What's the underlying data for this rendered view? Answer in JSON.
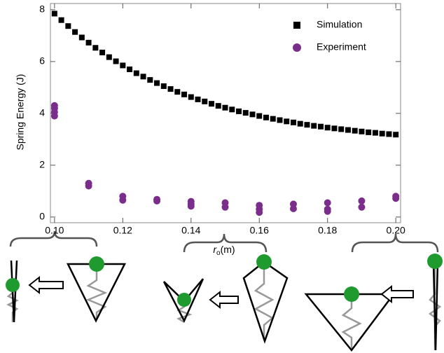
{
  "chart_data": {
    "type": "scatter",
    "ylabel": "Spring Energy (J)",
    "xlabel": {
      "symbol": "r",
      "subscript": "o",
      "unit": "(m)"
    },
    "xlim": [
      0.0988,
      0.2014
    ],
    "ylim": [
      -0.22,
      8.24
    ],
    "xticks": [
      {
        "value": 0.1,
        "label": "0.10"
      },
      0.12,
      0.14,
      0.16,
      0.18,
      {
        "value": 0.2,
        "label": "0.20"
      }
    ],
    "yticks": [
      0,
      2,
      4,
      6,
      8
    ],
    "legend": "upper right",
    "series": [
      {
        "name": "Simulation",
        "color": "#000000",
        "marker": "square",
        "x": [
          0.1,
          0.102,
          0.104,
          0.106,
          0.108,
          0.11,
          0.112,
          0.114,
          0.116,
          0.118,
          0.12,
          0.122,
          0.124,
          0.126,
          0.128,
          0.13,
          0.132,
          0.134,
          0.136,
          0.138,
          0.14,
          0.142,
          0.144,
          0.146,
          0.148,
          0.15,
          0.152,
          0.154,
          0.156,
          0.158,
          0.16,
          0.162,
          0.164,
          0.166,
          0.168,
          0.17,
          0.172,
          0.174,
          0.176,
          0.178,
          0.18,
          0.182,
          0.184,
          0.186,
          0.188,
          0.19,
          0.192,
          0.194,
          0.196,
          0.198,
          0.2
        ],
        "values": [
          7.85,
          7.6,
          7.37,
          7.14,
          6.93,
          6.73,
          6.53,
          6.35,
          6.17,
          6.01,
          5.85,
          5.7,
          5.55,
          5.42,
          5.29,
          5.17,
          5.05,
          4.94,
          4.83,
          4.73,
          4.63,
          4.54,
          4.46,
          4.37,
          4.29,
          4.22,
          4.15,
          4.08,
          4.02,
          3.96,
          3.9,
          3.84,
          3.79,
          3.74,
          3.69,
          3.65,
          3.6,
          3.56,
          3.52,
          3.49,
          3.45,
          3.42,
          3.39,
          3.36,
          3.33,
          3.3,
          3.27,
          3.25,
          3.22,
          3.2,
          3.18
        ]
      },
      {
        "name": "Experiment",
        "color": "#7b2d8b",
        "marker": "circle",
        "x": [
          0.1,
          0.1,
          0.1,
          0.1,
          0.11,
          0.11,
          0.12,
          0.12,
          0.13,
          0.13,
          0.14,
          0.14,
          0.14,
          0.15,
          0.15,
          0.16,
          0.16,
          0.16,
          0.17,
          0.17,
          0.18,
          0.18,
          0.18,
          0.19,
          0.19,
          0.2,
          0.2
        ],
        "values": [
          4.3,
          4.2,
          4.05,
          3.9,
          1.3,
          1.2,
          0.8,
          0.65,
          0.68,
          0.62,
          0.6,
          0.5,
          0.42,
          0.55,
          0.38,
          0.45,
          0.3,
          0.18,
          0.5,
          0.32,
          0.55,
          0.3,
          0.22,
          0.62,
          0.38,
          0.8,
          0.72
        ]
      }
    ]
  }
}
